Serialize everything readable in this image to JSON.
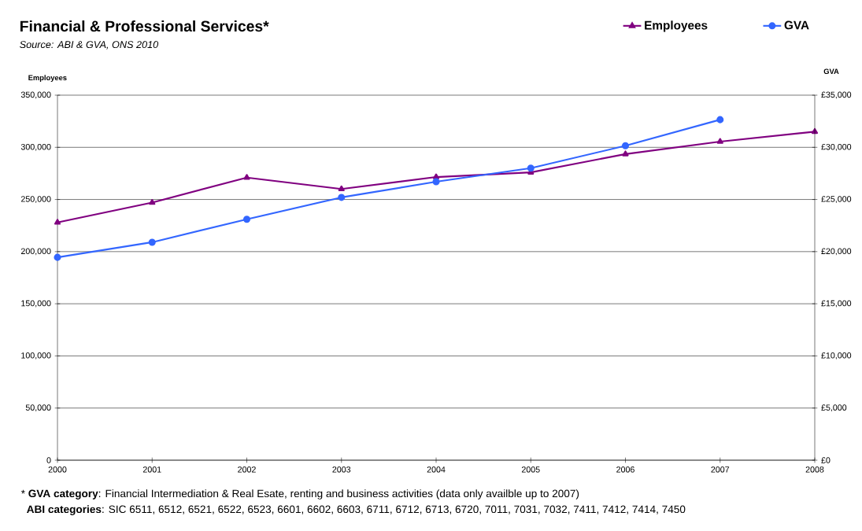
{
  "chart_data": {
    "type": "line",
    "title": "Financial & Professional Services*",
    "subtitle": "Source: ABI & GVA, ONS 2010",
    "ylabel": "Employees",
    "y2label": "GVA",
    "x": [
      2000,
      2001,
      2002,
      2003,
      2004,
      2005,
      2006,
      2007,
      2008
    ],
    "xlim": [
      2000,
      2008
    ],
    "xticks": [
      2000,
      2001,
      2002,
      2003,
      2004,
      2005,
      2006,
      2007,
      2008
    ],
    "ylim": [
      0,
      350000
    ],
    "yticks": [
      {
        "value": 0,
        "label": "0"
      },
      {
        "value": 50000,
        "label": "50,000"
      },
      {
        "value": 100000,
        "label": "100,000"
      },
      {
        "value": 150000,
        "label": "150,000"
      },
      {
        "value": 200000,
        "label": "200,000"
      },
      {
        "value": 250000,
        "label": "250,000"
      },
      {
        "value": 300000,
        "label": "300,000"
      },
      {
        "value": 350000,
        "label": "350,000"
      }
    ],
    "y2lim": [
      0,
      35000
    ],
    "y2ticks": [
      {
        "value": 0,
        "label": "£0"
      },
      {
        "value": 5000,
        "label": "£5,000"
      },
      {
        "value": 10000,
        "label": "£10,000"
      },
      {
        "value": 15000,
        "label": "£15,000"
      },
      {
        "value": 20000,
        "label": "£20,000"
      },
      {
        "value": 25000,
        "label": "£25,000"
      },
      {
        "value": 30000,
        "label": "£30,000"
      },
      {
        "value": 35000,
        "label": "£35,000"
      }
    ],
    "series": [
      {
        "name": "Employees",
        "color": "#800080",
        "marker": "triangle",
        "values": [
          228000,
          247000,
          271000,
          260000,
          271500,
          276000,
          293500,
          305500,
          315000
        ]
      },
      {
        "name": "GVA",
        "color": "#3366ff",
        "marker": "circle",
        "axis": "y2",
        "values": [
          19450,
          20900,
          23100,
          25200,
          26700,
          28000,
          30150,
          32650,
          null
        ]
      }
    ],
    "grid": "y",
    "legend": "top right",
    "line_style": "solid",
    "annotations": [
      "* **GVA category**: Financial Intermediation & Real Esate, renting and business activities (data only availble up to 2007)",
      "**ABI categories**: SIC 6511, 6512, 6521, 6522, 6523, 6601, 6602, 6603, 6711, 6712, 6713, 6720, 7011, 7031, 7032, 7411, 7412, 7414, 7450"
    ]
  }
}
